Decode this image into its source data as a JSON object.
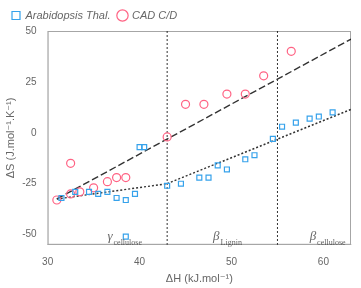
{
  "chart_data": {
    "type": "scatter",
    "xlabel": "ΔH (kJ.mol⁻¹)",
    "ylabel": "ΔS (J.mol⁻¹.K⁻¹)",
    "xlim": [
      30,
      63
    ],
    "ylim": [
      -55,
      50
    ],
    "xticks": [
      30,
      40,
      50,
      60
    ],
    "yticks": [
      -50,
      -25,
      0,
      25,
      50
    ],
    "grid": false,
    "legend": "upper left",
    "series": [
      {
        "name": "Arabidopsis Thal.",
        "color": "#36a2eb",
        "marker": "square",
        "x": [
          31.5,
          33,
          34.5,
          35.5,
          36.5,
          37.5,
          38.5,
          39.5,
          40.5,
          43.0,
          44.5,
          46.5,
          47.5,
          48.5,
          49.5,
          51.5,
          52.5,
          54.5,
          55.5,
          57.0,
          58.5,
          59.5,
          61.0,
          38.5,
          40.0
        ],
        "values": [
          -32,
          -29,
          -29,
          -30,
          -29,
          -32,
          -33,
          -30,
          -7,
          -26,
          -25,
          -22,
          -22,
          -16,
          -18,
          -13,
          -11,
          -3,
          3,
          5,
          7,
          8,
          10,
          -51,
          -7
        ]
      },
      {
        "name": "CAD C/D",
        "color": "#ff6384",
        "marker": "circle",
        "x": [
          31.0,
          32.5,
          33.5,
          35.0,
          36.5,
          37.5,
          38.5,
          43.0,
          45.0,
          47.0,
          49.5,
          51.5,
          53.5,
          56.5,
          32.5
        ],
        "values": [
          -33,
          -30,
          -29,
          -27,
          -24,
          -22,
          -22,
          -2,
          14,
          14,
          19,
          19,
          28,
          40,
          -15
        ]
      }
    ],
    "lines": [
      {
        "x": [
          31.0,
          63.0
        ],
        "values": [
          -32.5,
          46.0
        ],
        "line_style": "dashed",
        "color": "#333333"
      },
      {
        "x": [
          31.0,
          43.0
        ],
        "values": [
          -32.5,
          -25.0
        ],
        "line_style": "dotted",
        "color": "#333333"
      },
      {
        "x": [
          43.0,
          63.0
        ],
        "values": [
          -25.0,
          11.5
        ],
        "line_style": "dotted",
        "color": "#333333"
      }
    ],
    "vlines": [
      {
        "x": 43,
        "line_style": "dotted",
        "color": "#333333"
      },
      {
        "x": 55,
        "line_style": "dotted",
        "color": "#333333"
      }
    ],
    "annotations": [
      {
        "text": "γ",
        "sub": "cellulose",
        "x": 36.5,
        "y": -48
      },
      {
        "text": "β",
        "sub": "Lignin",
        "x": 48.0,
        "y": -48
      },
      {
        "text": "β",
        "sub": "cellulose",
        "x": 58.5,
        "y": -48
      }
    ]
  }
}
